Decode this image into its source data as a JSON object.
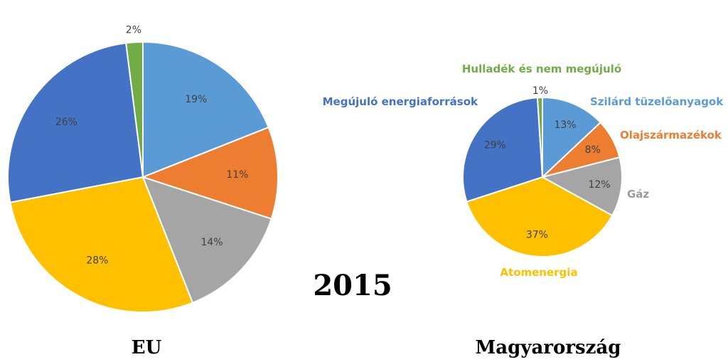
{
  "year_label": "2015",
  "chart_data": [
    {
      "type": "pie",
      "title": "EU",
      "start_angle_deg": 0,
      "direction": "clockwise",
      "slices": [
        {
          "label": "",
          "value": 19,
          "value_label": "19%",
          "color": "#5B9BD5"
        },
        {
          "label": "",
          "value": 11,
          "value_label": "11%",
          "color": "#ED7D31"
        },
        {
          "label": "",
          "value": 14,
          "value_label": "14%",
          "color": "#A5A5A5"
        },
        {
          "label": "",
          "value": 28,
          "value_label": "28%",
          "color": "#FFC000"
        },
        {
          "label": "",
          "value": 26,
          "value_label": "26%",
          "color": "#4472C4"
        },
        {
          "label": "",
          "value": 2,
          "value_label": "2%",
          "color": "#70AD47"
        }
      ]
    },
    {
      "type": "pie",
      "title": "Magyarország",
      "start_angle_deg": 0,
      "direction": "clockwise",
      "slices": [
        {
          "label": "Szilárd tüzelőanyagok",
          "value": 13,
          "value_label": "13%",
          "color": "#5B9BD5"
        },
        {
          "label": "Olajszármazékok",
          "value": 8,
          "value_label": "8%",
          "color": "#ED7D31"
        },
        {
          "label": "Gáz",
          "value": 12,
          "value_label": "12%",
          "color": "#A5A5A5"
        },
        {
          "label": "Atomenergia",
          "value": 37,
          "value_label": "37%",
          "color": "#FFC000"
        },
        {
          "label": "Megújuló energiaforrások",
          "value": 29,
          "value_label": "29%",
          "color": "#4472C4"
        },
        {
          "label": "Hulladék és nem megújuló",
          "value": 1,
          "value_label": "1%",
          "color": "#70AD47"
        }
      ]
    }
  ]
}
